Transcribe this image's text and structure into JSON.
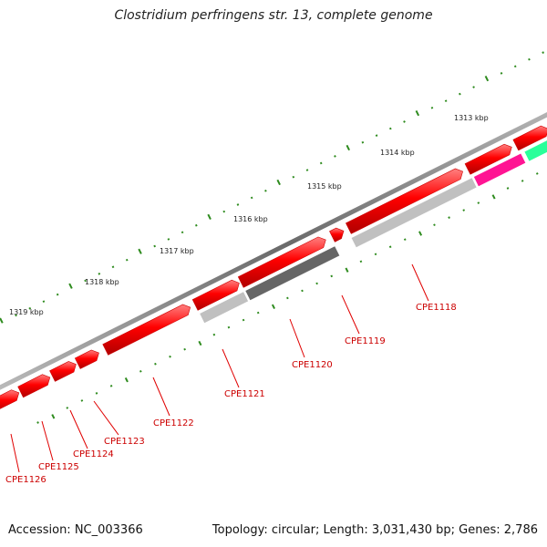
{
  "title": "Clostridium perfringens str. 13, complete genome",
  "accession_text": "Accession: NC_003366",
  "summary_text": "Topology: circular; Length: 3,031,430 bp; Genes: 2,786",
  "colors": {
    "backbone": "#7a7a7a",
    "cds": "#ff0000",
    "cog_light_gray": "#c0c0c0",
    "cog_dark_gray": "#666666",
    "cog_pink": "#ff1493",
    "cog_green": "#2aff9a",
    "gc_ticks": "#2e8b1e",
    "label": "#cc0000"
  },
  "scale_labels": [
    "1313 kbp",
    "1314 kbp",
    "1315 kbp",
    "1316 kbp",
    "1317 kbp",
    "1318 kbp",
    "1319 kbp"
  ],
  "gene_labels": [
    "CPE1118",
    "CPE1119",
    "CPE1120",
    "CPE1121",
    "CPE1122",
    "CPE1123",
    "CPE1124",
    "CPE1125",
    "CPE1126"
  ]
}
